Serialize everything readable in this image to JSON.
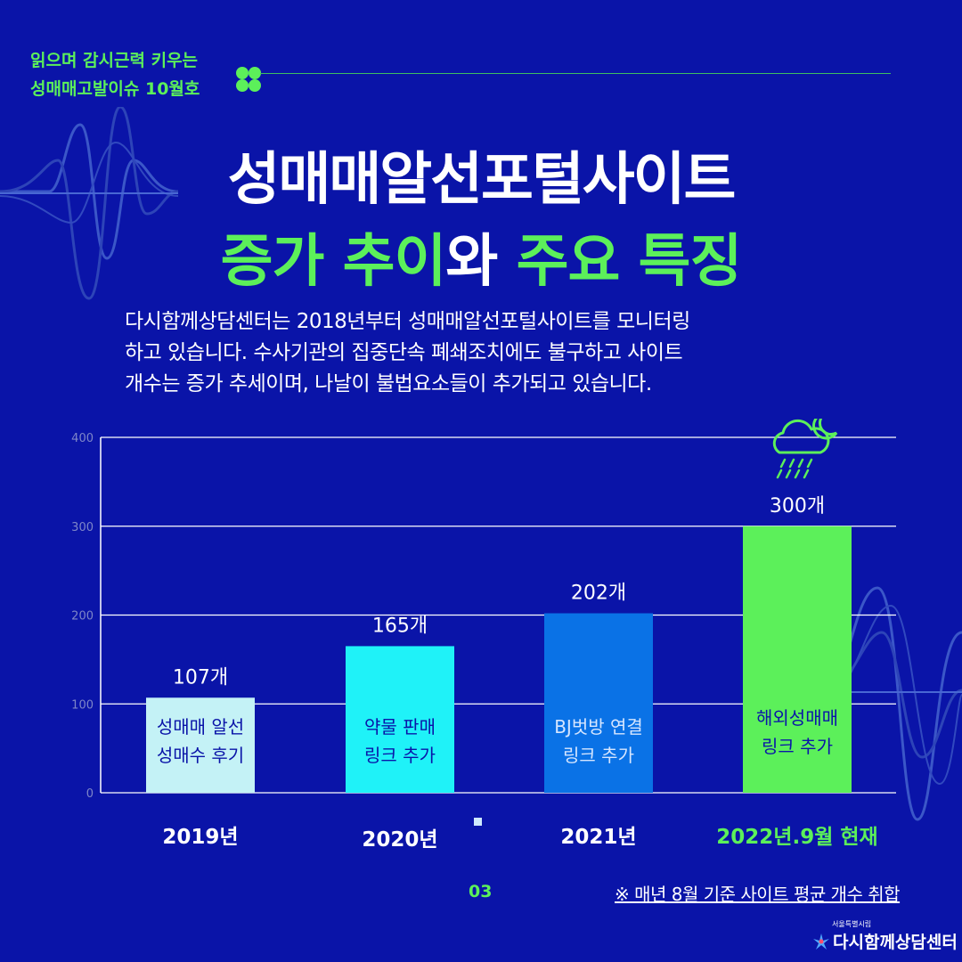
{
  "header": {
    "tagline_line1": "읽으며 감시근력 키우는",
    "tagline_line2": "성매매고발이슈 10월호"
  },
  "title": {
    "line1": "성매매알선포털사이트",
    "line2_part1": "증가 추이",
    "line2_part2": "와 ",
    "line2_part3": "주요 특징"
  },
  "description": {
    "line1": "다시함께상담센터는 2018년부터 성매매알선포털사이트를 모니터링",
    "line2": "하고 있습니다.  수사기관의 집중단속 폐쇄조치에도 불구하고 사이트",
    "line3": "개수는 증가 추세이며, 나날이 불법요소들이 추가되고 있습니다."
  },
  "colors": {
    "background": "#0a14a8",
    "accent_green": "#5cf05a",
    "bar_2019": "#c4f2f6",
    "bar_2020": "#1ff2f8",
    "bar_2021": "#0a72e6",
    "bar_2022": "#5cf05a"
  },
  "chart_data": {
    "type": "bar",
    "categories": [
      "2019년",
      "2020년",
      "2021년",
      "2022년.9월 현재"
    ],
    "values": [
      107,
      165,
      202,
      300
    ],
    "value_labels": [
      "107개",
      "165개",
      "202개",
      "300개"
    ],
    "bar_annotations": [
      [
        "성매매 알선",
        "성매수 후기"
      ],
      [
        "약물 판매",
        "링크 추가"
      ],
      [
        "BJ벗방 연결",
        "링크 추가"
      ],
      [
        "해외성매매",
        "링크 추가"
      ]
    ],
    "yticks": [
      0,
      100,
      200,
      300,
      400
    ],
    "ylim": [
      0,
      400
    ],
    "grid": true
  },
  "footer": {
    "page_number": "03",
    "note": "※ 매년 8월 기준 사이트 평균 개수 취합",
    "brand_sub": "서울특별시립",
    "brand_main": "다시함께상담센터"
  },
  "icons": [
    "clover-icon",
    "cloud-moon-rain-icon",
    "brand-logo-icon"
  ]
}
